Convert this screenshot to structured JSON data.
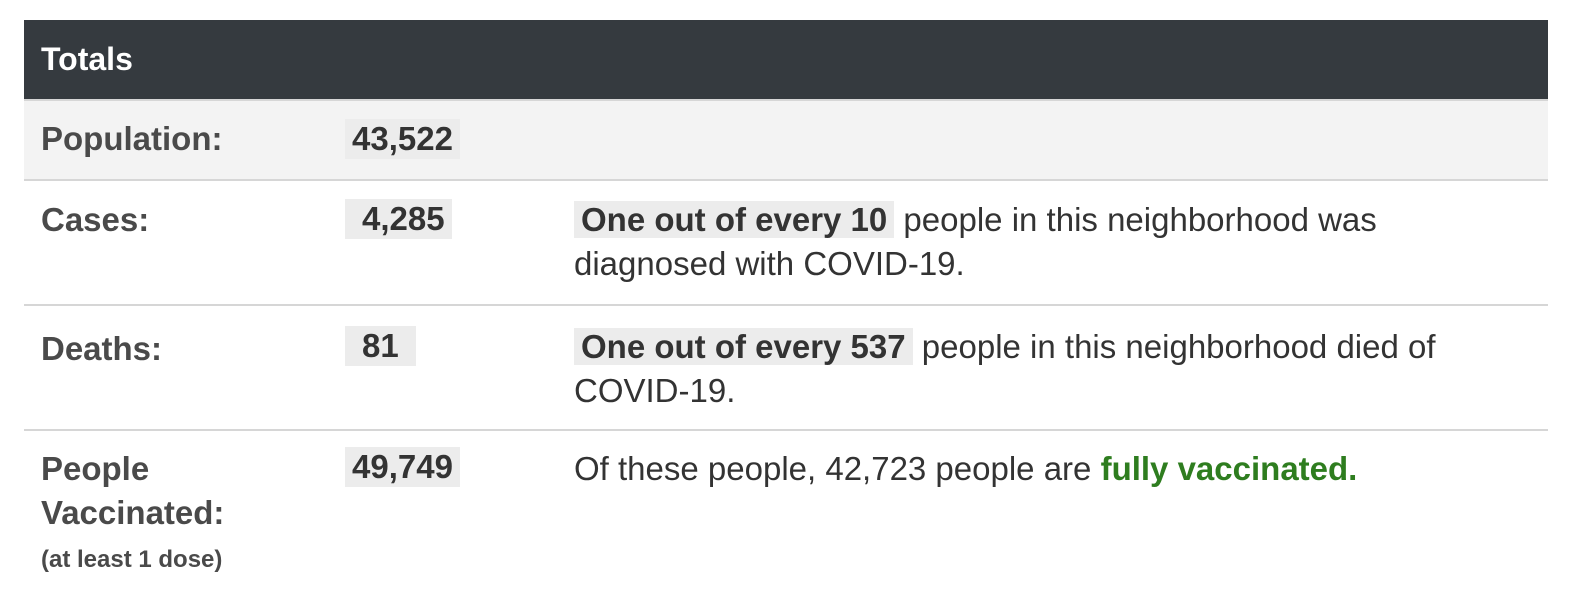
{
  "header": {
    "title": "Totals"
  },
  "rows": {
    "population": {
      "label": "Population:",
      "value": "43,522"
    },
    "cases": {
      "label": "Cases:",
      "value": "4,285",
      "highlight": "One out of every 10",
      "text": " people in this neighborhood was diagnosed with COVID-19."
    },
    "deaths": {
      "label": "Deaths:",
      "value": "81",
      "highlight": "One out of every 537",
      "text": " people in this neighborhood died of COVID-19."
    },
    "vaccinated": {
      "label_line1": "People",
      "label_line2": "Vaccinated:",
      "sublabel": "(at least 1 dose)",
      "value": "49,749",
      "text": "Of these people, 42,723 people are ",
      "emphasis": "fully vaccinated.",
      "emphasis_color": "#2e7d1f"
    }
  }
}
